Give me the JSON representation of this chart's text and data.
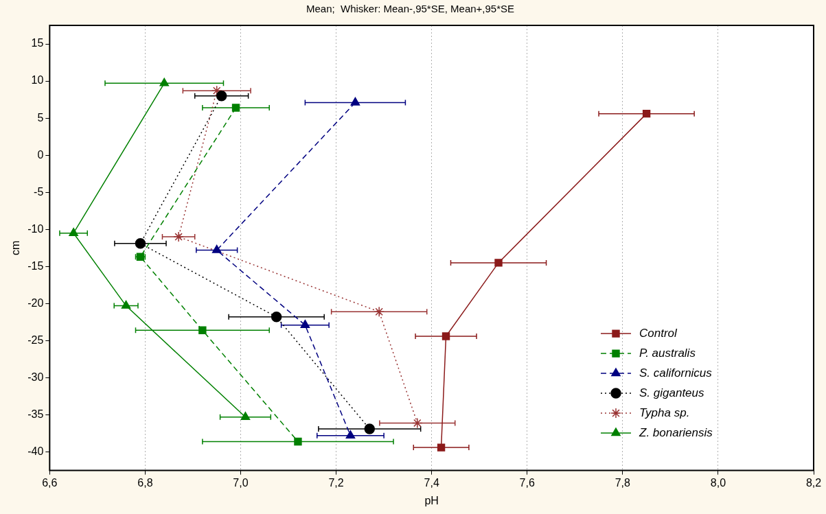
{
  "chart_data": {
    "type": "line",
    "title": "Mean;  Whisker: Mean-,95*SE, Mean+,95*SE",
    "xlabel": "pH",
    "ylabel": "cm",
    "xlim": [
      6.6,
      8.2
    ],
    "xticks": [
      {
        "value": 6.6,
        "label": "6,6"
      },
      {
        "value": 6.8,
        "label": "6,8"
      },
      {
        "value": 7.0,
        "label": "7,0"
      },
      {
        "value": 7.2,
        "label": "7,2"
      },
      {
        "value": 7.4,
        "label": "7,4"
      },
      {
        "value": 7.6,
        "label": "7,6"
      },
      {
        "value": 7.8,
        "label": "7,8"
      },
      {
        "value": 8.0,
        "label": "8,0"
      },
      {
        "value": 8.2,
        "label": "8,2"
      }
    ],
    "ylim": [
      -42.5,
      17.5
    ],
    "yticks": [
      -40,
      -35,
      -30,
      -25,
      -20,
      -15,
      -10,
      -5,
      0,
      5,
      10,
      15
    ],
    "grid": "x",
    "legend": "bottom right",
    "series": [
      {
        "name": "Control",
        "color": "#8b1a1a",
        "marker": "square",
        "line_style": "solid",
        "x": [
          7.85,
          7.54,
          7.43,
          7.42
        ],
        "values": [
          5.6,
          -14.5,
          -24.4,
          -39.4
        ],
        "xerrors": [
          0.1,
          0.1,
          0.064,
          0.058
        ]
      },
      {
        "name": "P. australis",
        "color": "#008000",
        "marker": "square",
        "line_style": "dashed",
        "x": [
          6.99,
          6.79,
          6.92,
          7.12
        ],
        "values": [
          6.4,
          -13.7,
          -23.6,
          -38.6
        ],
        "xerrors": [
          0.07,
          0.01,
          0.14,
          0.2
        ]
      },
      {
        "name": "S. californicus",
        "color": "#000080",
        "marker": "triangle",
        "line_style": "dashed",
        "x": [
          7.24,
          6.95,
          7.135,
          7.23
        ],
        "values": [
          7.1,
          -12.8,
          -22.9,
          -37.8
        ],
        "xerrors": [
          0.105,
          0.043,
          0.05,
          0.07
        ]
      },
      {
        "name": "S. giganteus",
        "color": "#000000",
        "marker": "circle",
        "line_style": "dotted",
        "x": [
          6.96,
          6.79,
          7.075,
          7.27
        ],
        "values": [
          8.0,
          -11.9,
          -21.8,
          -36.9
        ],
        "xerrors": [
          0.056,
          0.054,
          0.1,
          0.107
        ]
      },
      {
        "name": "Typha sp.",
        "color": "#993333",
        "marker": "cross",
        "line_style": "dotted",
        "x": [
          6.95,
          6.87,
          7.29,
          7.37
        ],
        "values": [
          8.7,
          -11.0,
          -21.1,
          -36.1
        ],
        "xerrors": [
          0.071,
          0.034,
          0.1,
          0.079
        ]
      },
      {
        "name": "Z. bonariensis",
        "color": "#008000",
        "marker": "triangle",
        "line_style": "solid",
        "x": [
          6.84,
          6.65,
          6.76,
          7.01
        ],
        "values": [
          9.7,
          -10.5,
          -20.3,
          -35.3
        ],
        "xerrors": [
          0.124,
          0.029,
          0.025,
          0.053
        ]
      }
    ]
  }
}
